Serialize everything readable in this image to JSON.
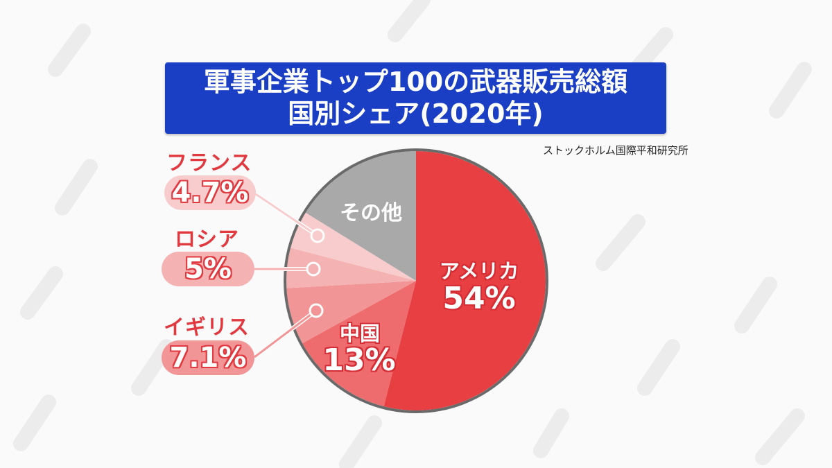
{
  "title_line1": "軍事企業トップ100の武器販売総額",
  "title_line2": "国別シェア(2020年)",
  "source": "ストックホルム国際平和研究所",
  "chart_data": {
    "type": "pie",
    "title": "軍事企業トップ100の武器販売総額 国別シェア(2020年)",
    "start": "12 o'clock, clockwise",
    "slices": [
      {
        "name": "アメリカ",
        "label": "54%",
        "value": 54,
        "color": "#e84042"
      },
      {
        "name": "中国",
        "label": "13%",
        "value": 13,
        "color": "#ee6c6e"
      },
      {
        "name": "イギリス",
        "label": "7.1%",
        "value": 7.1,
        "color": "#f29596"
      },
      {
        "name": "ロシア",
        "label": "5%",
        "value": 5,
        "color": "#f5b2b3"
      },
      {
        "name": "フランス",
        "label": "4.7%",
        "value": 4.7,
        "color": "#f8cccc"
      },
      {
        "name": "その他",
        "label": "",
        "value": 16.2,
        "color": "#a9a9a9"
      }
    ],
    "border_color": "#6a6a6a"
  }
}
